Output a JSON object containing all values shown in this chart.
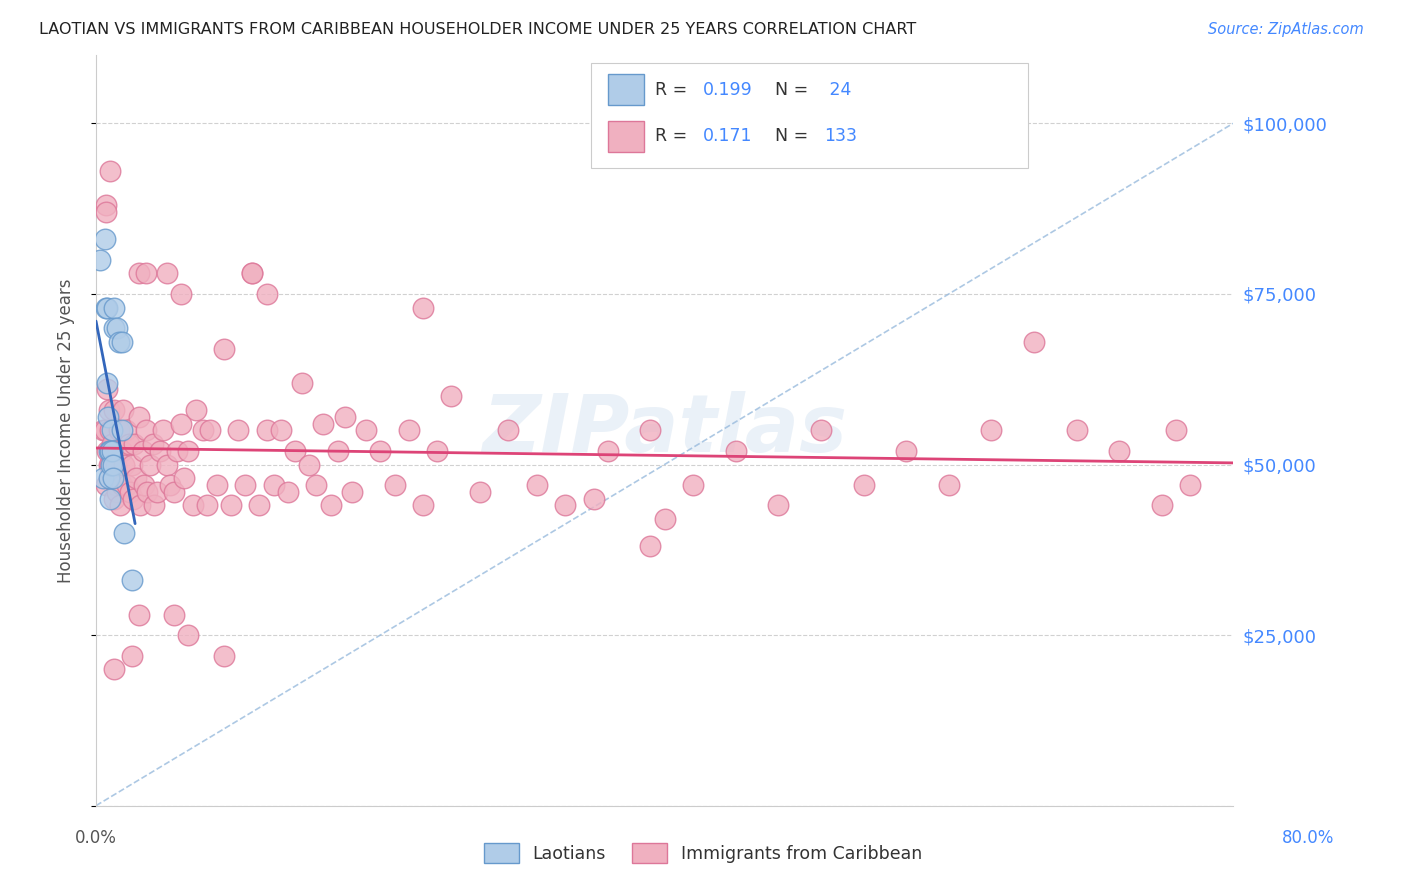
{
  "title": "LAOTIAN VS IMMIGRANTS FROM CARIBBEAN HOUSEHOLDER INCOME UNDER 25 YEARS CORRELATION CHART",
  "source": "Source: ZipAtlas.com",
  "ylabel": "Householder Income Under 25 years",
  "watermark": "ZIPatlas",
  "blue_scatter_face": "#b0cce8",
  "blue_scatter_edge": "#6699cc",
  "pink_scatter_face": "#f0b0c0",
  "pink_scatter_edge": "#dd7799",
  "blue_line_color": "#3366bb",
  "pink_line_color": "#dd4477",
  "diag_line_color": "#99bbdd",
  "right_axis_color": "#4488ff",
  "legend_label_color": "#333333",
  "grid_color": "#cccccc",
  "spine_color": "#cccccc",
  "title_color": "#222222",
  "ylabel_color": "#555555",
  "y_ticks": [
    0,
    25000,
    50000,
    75000,
    100000
  ],
  "y_tick_labels_right": [
    "",
    "$25,000",
    "$50,000",
    "$75,000",
    "$100,000"
  ],
  "xlim": [
    0.0,
    0.8
  ],
  "ylim": [
    0,
    110000
  ],
  "laotians_x": [
    0.003,
    0.005,
    0.006,
    0.007,
    0.0075,
    0.008,
    0.0082,
    0.009,
    0.0093,
    0.01,
    0.01,
    0.0102,
    0.011,
    0.0112,
    0.012,
    0.012,
    0.013,
    0.013,
    0.015,
    0.016,
    0.018,
    0.018,
    0.02,
    0.025
  ],
  "laotians_y": [
    80000,
    48000,
    83000,
    73000,
    73000,
    62000,
    57000,
    52000,
    48000,
    52000,
    45000,
    50000,
    55000,
    52000,
    50000,
    48000,
    73000,
    70000,
    70000,
    68000,
    68000,
    55000,
    40000,
    33000
  ],
  "caribbean_x": [
    0.005,
    0.006,
    0.007,
    0.007,
    0.008,
    0.008,
    0.009,
    0.009,
    0.01,
    0.01,
    0.011,
    0.011,
    0.012,
    0.012,
    0.013,
    0.013,
    0.014,
    0.014,
    0.015,
    0.015,
    0.016,
    0.016,
    0.017,
    0.018,
    0.018,
    0.019,
    0.02,
    0.021,
    0.022,
    0.023,
    0.024,
    0.025,
    0.026,
    0.027,
    0.028,
    0.03,
    0.031,
    0.033,
    0.034,
    0.035,
    0.036,
    0.038,
    0.04,
    0.041,
    0.043,
    0.045,
    0.047,
    0.05,
    0.052,
    0.055,
    0.057,
    0.06,
    0.062,
    0.065,
    0.068,
    0.07,
    0.075,
    0.078,
    0.08,
    0.085,
    0.09,
    0.095,
    0.1,
    0.105,
    0.11,
    0.115,
    0.12,
    0.125,
    0.13,
    0.135,
    0.14,
    0.145,
    0.15,
    0.155,
    0.16,
    0.165,
    0.17,
    0.175,
    0.18,
    0.19,
    0.2,
    0.21,
    0.22,
    0.23,
    0.24,
    0.25,
    0.27,
    0.29,
    0.31,
    0.33,
    0.36,
    0.39,
    0.42,
    0.45,
    0.48,
    0.51,
    0.54,
    0.57,
    0.6,
    0.63,
    0.007,
    0.01,
    0.03,
    0.035,
    0.05,
    0.06,
    0.11,
    0.12,
    0.23,
    0.013,
    0.025,
    0.03,
    0.055,
    0.065,
    0.09,
    0.66,
    0.69,
    0.72,
    0.75,
    0.76,
    0.77,
    0.39,
    0.4,
    0.35
  ],
  "caribbean_y": [
    55000,
    55000,
    47000,
    88000,
    61000,
    52000,
    58000,
    50000,
    55000,
    50000,
    53000,
    48000,
    52000,
    48000,
    58000,
    45000,
    50000,
    47000,
    52000,
    46000,
    55000,
    48000,
    44000,
    52000,
    47000,
    58000,
    50000,
    55000,
    47000,
    53000,
    46000,
    50000,
    45000,
    53000,
    48000,
    57000,
    44000,
    52000,
    47000,
    55000,
    46000,
    50000,
    53000,
    44000,
    46000,
    52000,
    55000,
    50000,
    47000,
    46000,
    52000,
    56000,
    48000,
    52000,
    44000,
    58000,
    55000,
    44000,
    55000,
    47000,
    67000,
    44000,
    55000,
    47000,
    78000,
    44000,
    55000,
    47000,
    55000,
    46000,
    52000,
    62000,
    50000,
    47000,
    56000,
    44000,
    52000,
    57000,
    46000,
    55000,
    52000,
    47000,
    55000,
    44000,
    52000,
    60000,
    46000,
    55000,
    47000,
    44000,
    52000,
    55000,
    47000,
    52000,
    44000,
    55000,
    47000,
    52000,
    47000,
    55000,
    87000,
    93000,
    78000,
    78000,
    78000,
    75000,
    78000,
    75000,
    73000,
    20000,
    22000,
    28000,
    28000,
    25000,
    22000,
    68000,
    55000,
    52000,
    44000,
    55000,
    47000,
    38000,
    42000,
    45000
  ]
}
